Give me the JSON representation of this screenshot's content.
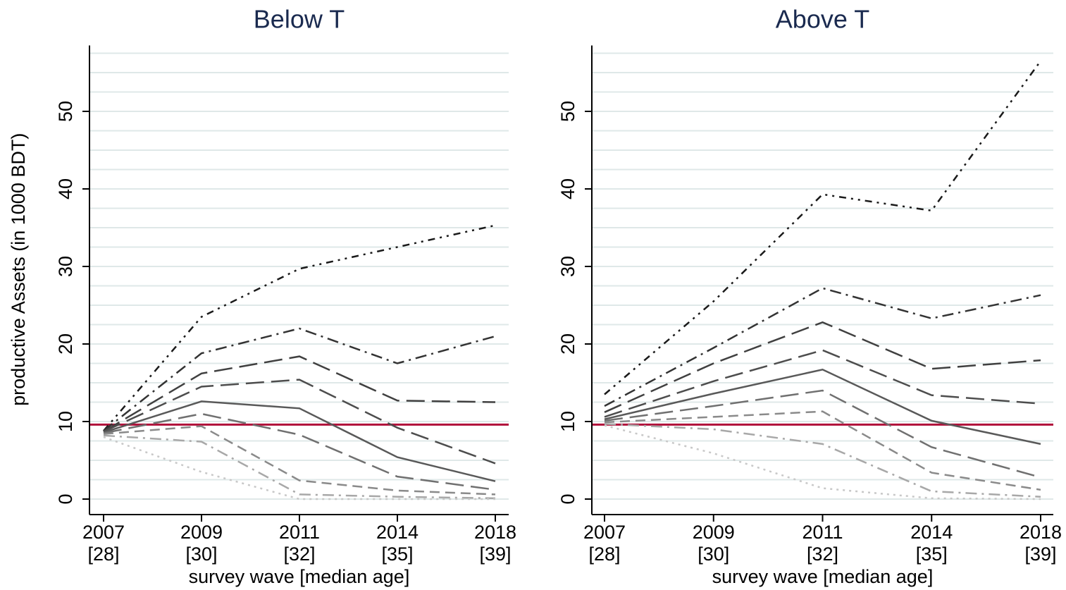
{
  "chart_data": [
    {
      "type": "line",
      "title": "Below T",
      "y_label": "productive Assets (in 1000 BDT)",
      "x_label": "survey wave [median age]",
      "categories": [
        "2007",
        "2009",
        "2011",
        "2014",
        "2018"
      ],
      "category_sublabels": [
        "[28]",
        "[30]",
        "[32]",
        "[35]",
        "[39]"
      ],
      "ylim": [
        -2,
        58.5
      ],
      "yticks": [
        0,
        10,
        20,
        30,
        40,
        50
      ],
      "grid": [
        0,
        2.5,
        5,
        7.5,
        10,
        12.5,
        15,
        17.5,
        20,
        22.5,
        25,
        27.5,
        30,
        32.5,
        35,
        37.5,
        40,
        42.5,
        45,
        47.5,
        50,
        52.5,
        55,
        57.5
      ],
      "hline": {
        "value": 9.6,
        "color": "#b0103a"
      },
      "series": [
        {
          "color": "#1a1a1a",
          "dash": "dashdotdot",
          "values": [
            8.8,
            23.5,
            29.7,
            32.5,
            35.3
          ]
        },
        {
          "color": "#333333",
          "dash": "dashdot",
          "values": [
            8.8,
            18.8,
            22,
            17.5,
            21
          ]
        },
        {
          "color": "#404040",
          "dash": "longdash",
          "values": [
            8.7,
            16.2,
            18.4,
            12.7,
            12.5
          ]
        },
        {
          "color": "#4d4d4d",
          "dash": "longdash",
          "values": [
            8.7,
            14.5,
            15.4,
            9.2,
            4.6
          ]
        },
        {
          "color": "#595959",
          "dash": "solid",
          "values": [
            8.6,
            12.6,
            11.7,
            5.4,
            2.3
          ]
        },
        {
          "color": "#707070",
          "dash": "longdash",
          "values": [
            8.5,
            11,
            8.3,
            2.9,
            1.2
          ]
        },
        {
          "color": "#8a8a8a",
          "dash": "dash",
          "values": [
            8.4,
            9.4,
            2.4,
            1.1,
            0.6
          ]
        },
        {
          "color": "#a8a8a8",
          "dash": "dashdot",
          "values": [
            8.2,
            7.4,
            0.6,
            0.3,
            0.1
          ]
        },
        {
          "color": "#c8c8c8",
          "dash": "dot",
          "values": [
            8,
            3.5,
            0,
            0,
            0
          ]
        }
      ]
    },
    {
      "type": "line",
      "title": "Above T",
      "x_label": "survey wave [median age]",
      "categories": [
        "2007",
        "2009",
        "2011",
        "2014",
        "2018"
      ],
      "category_sublabels": [
        "[28]",
        "[30]",
        "[32]",
        "[35]",
        "[39]"
      ],
      "ylim": [
        -2,
        58.5
      ],
      "yticks": [
        0,
        10,
        20,
        30,
        40,
        50
      ],
      "grid": [
        0,
        2.5,
        5,
        7.5,
        10,
        12.5,
        15,
        17.5,
        20,
        22.5,
        25,
        27.5,
        30,
        32.5,
        35,
        37.5,
        40,
        42.5,
        45,
        47.5,
        50,
        52.5,
        55,
        57.5
      ],
      "hline": {
        "value": 9.6,
        "color": "#b0103a"
      },
      "series": [
        {
          "color": "#1a1a1a",
          "dash": "dashdotdot",
          "values": [
            13.5,
            25.5,
            39.3,
            37.2,
            56.5
          ]
        },
        {
          "color": "#333333",
          "dash": "dashdot",
          "values": [
            12,
            19.5,
            27.2,
            23.3,
            26.3
          ]
        },
        {
          "color": "#404040",
          "dash": "longdash",
          "values": [
            11.2,
            17.5,
            22.8,
            16.8,
            17.9
          ]
        },
        {
          "color": "#4d4d4d",
          "dash": "longdash",
          "values": [
            10.6,
            15.2,
            19.2,
            13.4,
            12.3
          ]
        },
        {
          "color": "#595959",
          "dash": "solid",
          "values": [
            10.3,
            13.6,
            16.7,
            10.1,
            7.1
          ]
        },
        {
          "color": "#707070",
          "dash": "longdash",
          "values": [
            10.1,
            12,
            14,
            6.7,
            2.8
          ]
        },
        {
          "color": "#8a8a8a",
          "dash": "dash",
          "values": [
            9.9,
            10.6,
            11.3,
            3.4,
            1.2
          ]
        },
        {
          "color": "#a8a8a8",
          "dash": "dashdot",
          "values": [
            9.7,
            9,
            7.1,
            1,
            0.3
          ]
        },
        {
          "color": "#c8c8c8",
          "dash": "dot",
          "values": [
            9.5,
            5.9,
            1.4,
            0.1,
            0
          ]
        }
      ]
    }
  ]
}
